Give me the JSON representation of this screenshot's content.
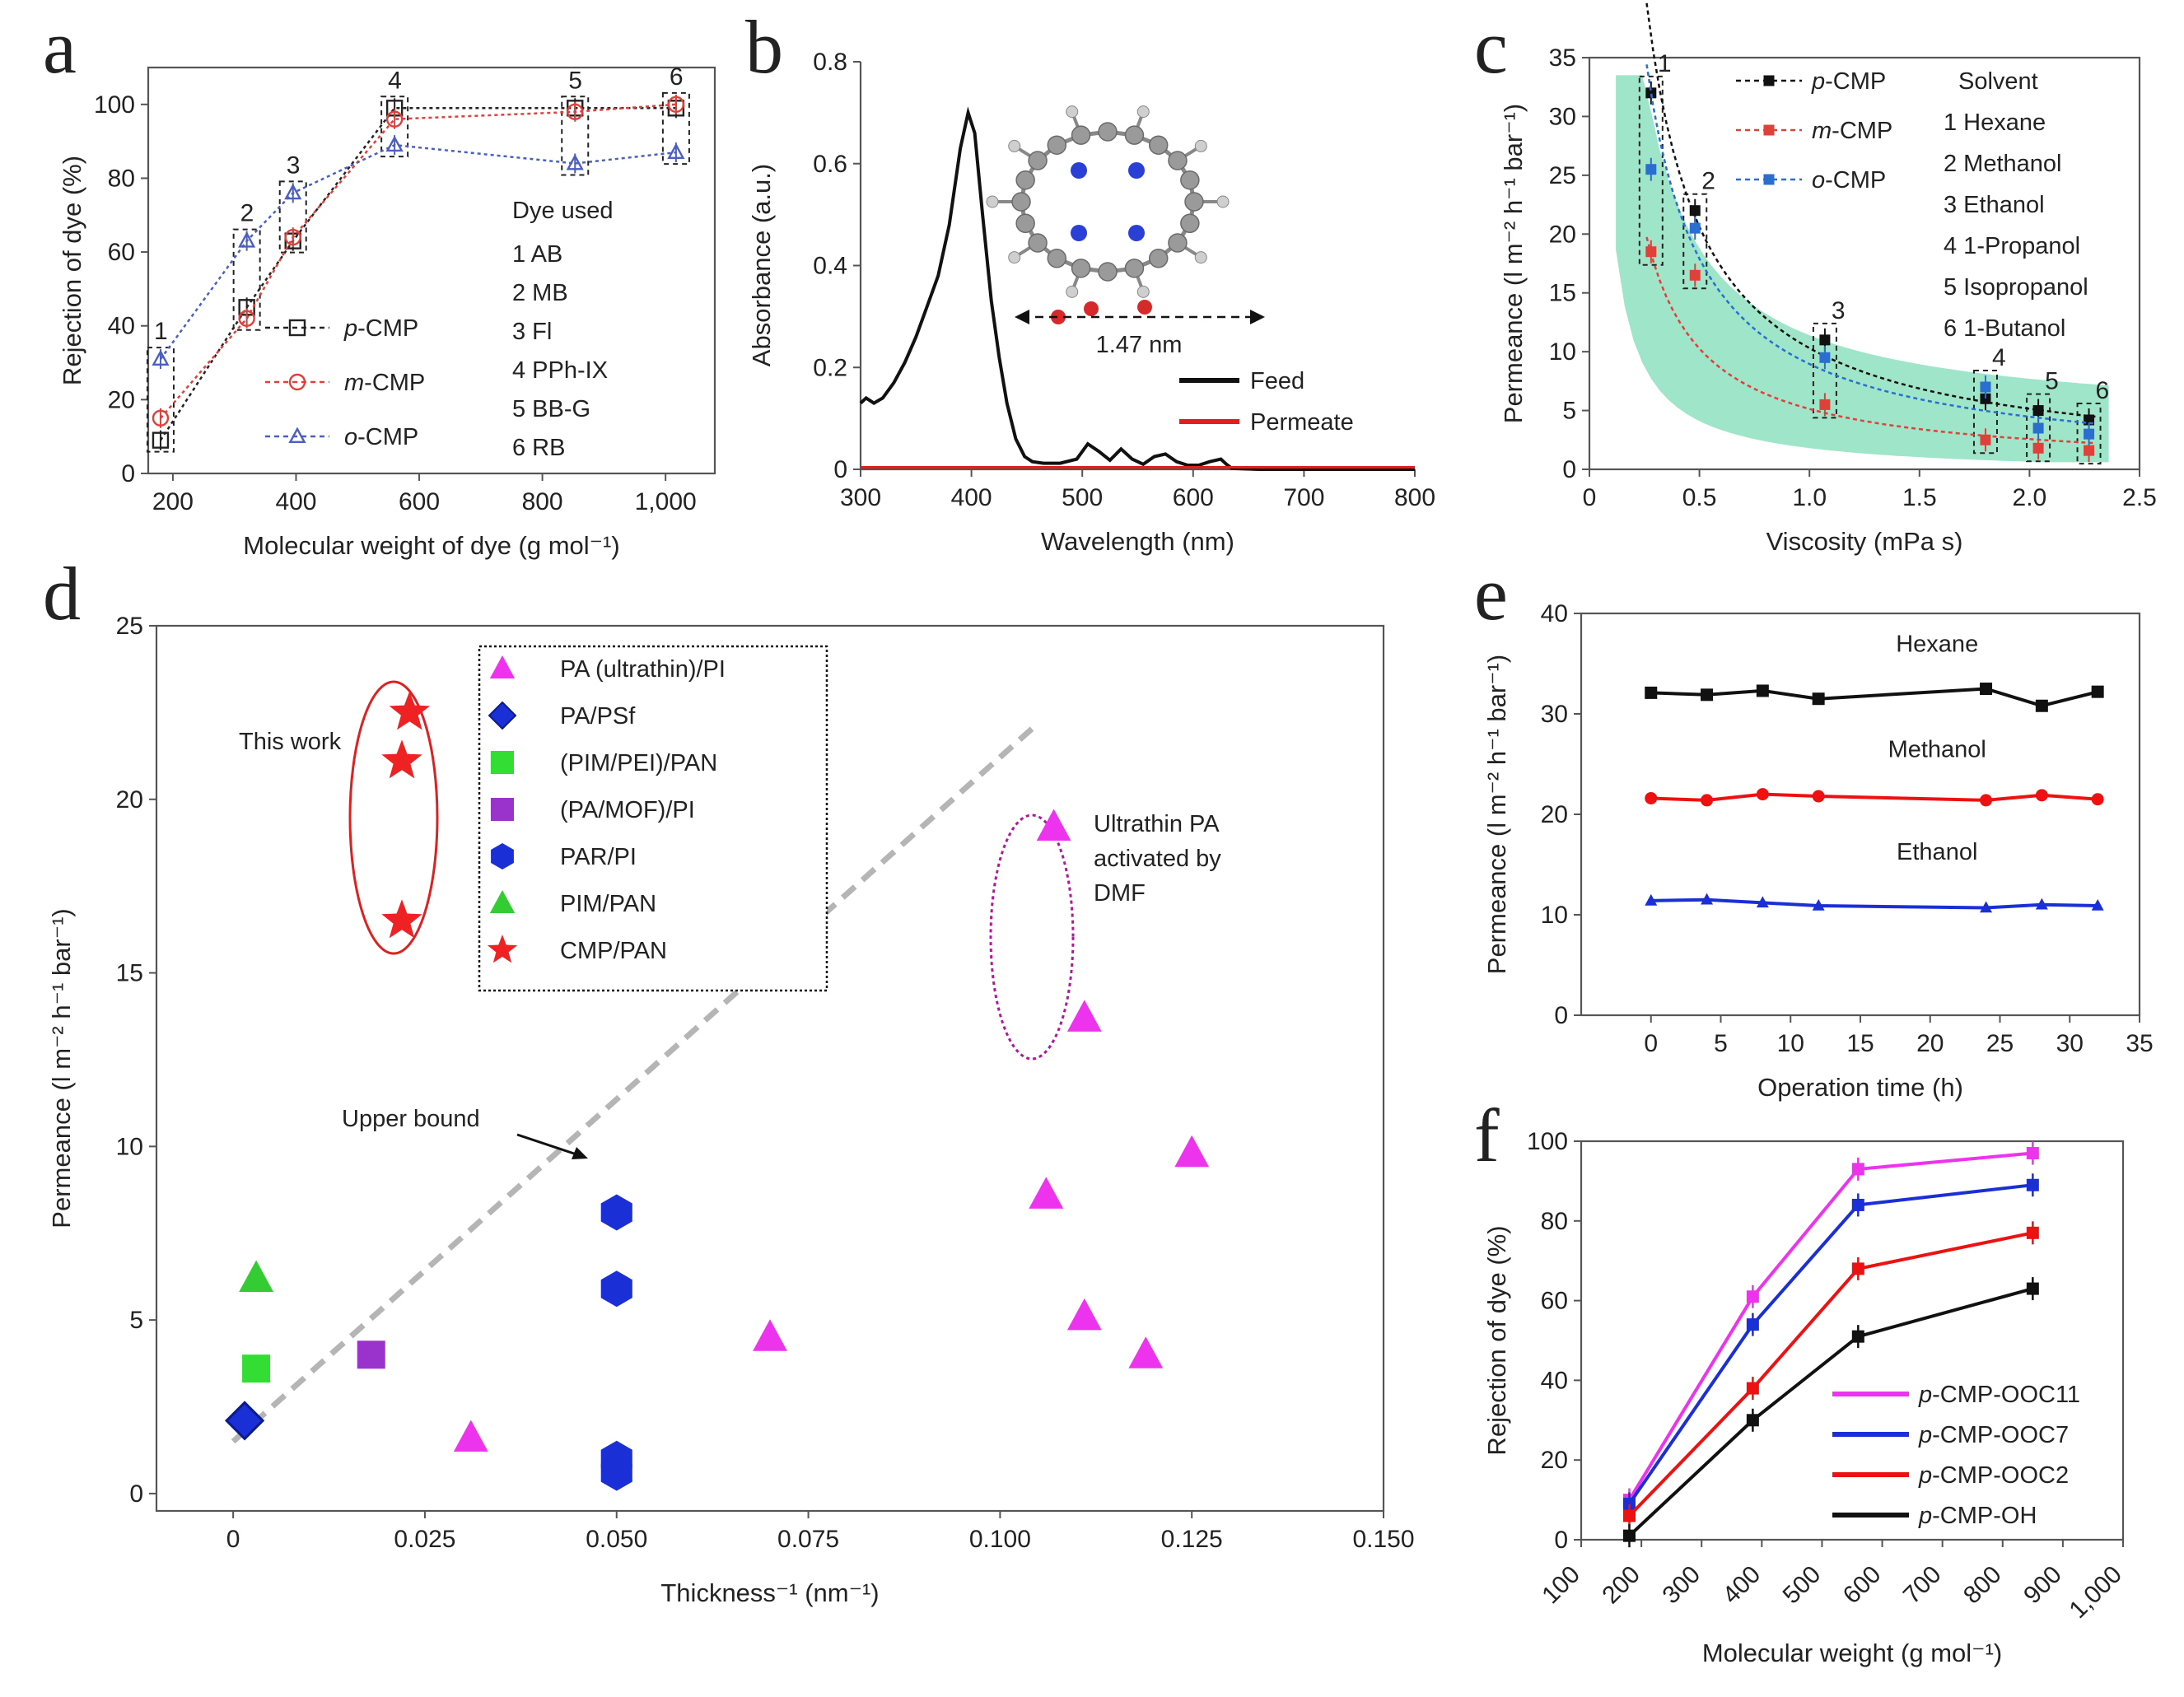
{
  "figure": {
    "panels": [
      "a",
      "b",
      "c",
      "d",
      "e",
      "f"
    ]
  },
  "chart_data": [
    {
      "panel": "a",
      "type": "line",
      "xlabel": "Molecular weight of dye (g mol⁻¹)",
      "ylabel": "Rejection of dye (%)",
      "xlim": [
        160,
        1080
      ],
      "ylim": [
        0,
        110
      ],
      "xticks": [
        200,
        400,
        600,
        800,
        1000
      ],
      "xtick_labels": [
        "200",
        "400",
        "600",
        "800",
        "1,000"
      ],
      "yticks": [
        0,
        20,
        40,
        60,
        80,
        100
      ],
      "ytick_labels": [
        "0",
        "20",
        "40",
        "60",
        "80",
        "100"
      ],
      "x": [
        180,
        320,
        395,
        560,
        853,
        1017
      ],
      "point_labels": [
        "1",
        "2",
        "3",
        "4",
        "5",
        "6"
      ],
      "series": [
        {
          "name": "p-CMP",
          "color": "#222222",
          "marker": "square",
          "values": [
            9,
            45,
            63,
            99,
            99,
            99
          ]
        },
        {
          "name": "m-CMP",
          "color": "#e0403a",
          "marker": "circle",
          "values": [
            15,
            42,
            64,
            96,
            98,
            100
          ]
        },
        {
          "name": "o-CMP",
          "color": "#4a5fc1",
          "marker": "triangle",
          "values": [
            31,
            63,
            76,
            89,
            84,
            87
          ]
        }
      ],
      "legend_title": "Dye used",
      "dyes": [
        "1 AB",
        "2 MB",
        "3 Fl",
        "4 PPh-IX",
        "5 BB-G",
        "6 RB"
      ]
    },
    {
      "panel": "b",
      "type": "line",
      "xlabel": "Wavelength (nm)",
      "ylabel": "Absorbance (a.u.)",
      "xlim": [
        300,
        800
      ],
      "ylim": [
        0,
        0.8
      ],
      "xticks": [
        300,
        400,
        500,
        600,
        700,
        800
      ],
      "yticks": [
        0,
        0.2,
        0.4,
        0.6,
        0.8
      ],
      "ytick_labels": [
        "0",
        "0.2",
        "0.4",
        "0.6",
        "0.8"
      ],
      "series": [
        {
          "name": "Feed",
          "color": "#111111",
          "x": [
            300,
            305,
            312,
            320,
            330,
            340,
            350,
            360,
            370,
            380,
            390,
            397,
            403,
            410,
            418,
            425,
            432,
            440,
            448,
            455,
            465,
            480,
            495,
            505,
            515,
            525,
            535,
            545,
            555,
            565,
            575,
            585,
            595,
            605,
            615,
            625,
            630,
            635,
            645,
            660,
            700,
            800
          ],
          "y": [
            0.13,
            0.14,
            0.13,
            0.14,
            0.17,
            0.21,
            0.26,
            0.32,
            0.38,
            0.48,
            0.63,
            0.7,
            0.66,
            0.5,
            0.33,
            0.22,
            0.13,
            0.06,
            0.025,
            0.015,
            0.012,
            0.012,
            0.02,
            0.05,
            0.035,
            0.018,
            0.04,
            0.02,
            0.01,
            0.025,
            0.03,
            0.015,
            0.008,
            0.008,
            0.015,
            0.02,
            0.01,
            0.002,
            0.001,
            0,
            0,
            0
          ]
        },
        {
          "name": "Permeate",
          "color": "#e02020",
          "x": [
            300,
            800
          ],
          "y": [
            0.004,
            0.004
          ]
        }
      ],
      "annotation": "1.47 nm"
    },
    {
      "panel": "c",
      "type": "scatter",
      "xlabel": "Viscosity (mPa s)",
      "ylabel": "Permeance (l m⁻² h⁻¹ bar⁻¹)",
      "xlim": [
        0,
        2.5
      ],
      "ylim": [
        0,
        35
      ],
      "xticks": [
        0,
        0.5,
        1.0,
        1.5,
        2.0,
        2.5
      ],
      "xtick_labels": [
        "0",
        "0.5",
        "1.0",
        "1.5",
        "2.0",
        "2.5"
      ],
      "yticks": [
        0,
        5,
        10,
        15,
        20,
        25,
        30,
        35
      ],
      "x": [
        0.28,
        0.48,
        1.07,
        1.8,
        2.04,
        2.27
      ],
      "point_labels": [
        "1",
        "2",
        "3",
        "4",
        "5",
        "6"
      ],
      "series": [
        {
          "name": "p-CMP",
          "color": "#111111",
          "values": [
            32,
            22,
            11,
            6,
            5,
            4.2
          ]
        },
        {
          "name": "m-CMP",
          "color": "#e0403a",
          "values": [
            18.5,
            16.5,
            5.5,
            2.5,
            1.8,
            1.6
          ]
        },
        {
          "name": "o-CMP",
          "color": "#2a6fd0",
          "values": [
            25.5,
            20.5,
            9.5,
            7,
            3.5,
            3
          ]
        }
      ],
      "legend_title": "Solvent",
      "solvents": [
        "1 Hexane",
        "2 Methanol",
        "3 Ethanol",
        "4 1-Propanol",
        "5 Isopropanol",
        "6 1-Butanol"
      ]
    },
    {
      "panel": "d",
      "type": "scatter",
      "xlabel": "Thickness⁻¹ (nm⁻¹)",
      "ylabel": "Permeance (l m⁻² h⁻¹ bar⁻¹)",
      "xlim": [
        -0.01,
        0.15
      ],
      "ylim": [
        -0.5,
        25
      ],
      "xticks": [
        0,
        0.025,
        0.05,
        0.075,
        0.1,
        0.125,
        0.15
      ],
      "xtick_labels": [
        "0",
        "0.025",
        "0.050",
        "0.075",
        "0.100",
        "0.125",
        "0.150"
      ],
      "yticks": [
        0,
        5,
        10,
        15,
        20,
        25
      ],
      "series": [
        {
          "name": "PA (ultrathin)/PI",
          "color": "#ee33ee",
          "marker": "triangle",
          "points": [
            [
              0.107,
              19.2
            ],
            [
              0.111,
              13.7
            ],
            [
              0.125,
              9.8
            ],
            [
              0.106,
              8.6
            ],
            [
              0.111,
              5.1
            ],
            [
              0.119,
              4
            ],
            [
              0.07,
              4.5
            ],
            [
              0.031,
              1.6
            ]
          ]
        },
        {
          "name": "PA/PSf",
          "color": "#1a2fd6",
          "marker": "diamond",
          "points": [
            [
              0.0015,
              2.1
            ]
          ]
        },
        {
          "name": "(PIM/PEI)/PAN",
          "color": "#33dd33",
          "marker": "square",
          "points": [
            [
              0.003,
              3.6
            ]
          ]
        },
        {
          "name": "(PA/MOF)/PI",
          "color": "#9933cc",
          "marker": "square",
          "points": [
            [
              0.018,
              4
            ]
          ]
        },
        {
          "name": "PAR/PI",
          "color": "#1a2fd6",
          "marker": "hexagon",
          "points": [
            [
              0.05,
              8.1
            ],
            [
              0.05,
              5.9
            ],
            [
              0.05,
              1
            ],
            [
              0.05,
              0.6
            ]
          ]
        },
        {
          "name": "PIM/PAN",
          "color": "#33cc33",
          "marker": "triangle",
          "points": [
            [
              0.003,
              6.2
            ]
          ]
        },
        {
          "name": "CMP/PAN",
          "color": "#ee2222",
          "marker": "star",
          "points": [
            [
              0.023,
              22.5
            ],
            [
              0.022,
              21.1
            ],
            [
              0.022,
              16.5
            ]
          ]
        }
      ],
      "upper_bound": {
        "label": "Upper bound",
        "x": [
          0,
          0.105
        ],
        "y": [
          1.5,
          22.2
        ]
      },
      "annotations": [
        "This work",
        "Ultrathin PA",
        "activated by",
        "DMF"
      ]
    },
    {
      "panel": "e",
      "type": "line",
      "xlabel": "Operation time (h)",
      "ylabel": "Permeance (l m⁻² h⁻¹ bar⁻¹)",
      "xlim": [
        -5,
        35
      ],
      "ylim": [
        0,
        40
      ],
      "xticks": [
        0,
        5,
        10,
        15,
        20,
        25,
        30,
        35
      ],
      "yticks": [
        0,
        10,
        20,
        30,
        40
      ],
      "x": [
        0,
        4,
        8,
        12,
        24,
        28,
        32
      ],
      "series": [
        {
          "name": "Hexane",
          "color": "#111111",
          "marker": "square",
          "values": [
            32.1,
            31.9,
            32.3,
            31.5,
            32.5,
            30.8,
            32.2
          ]
        },
        {
          "name": "Methanol",
          "color": "#ee1111",
          "marker": "circle",
          "values": [
            21.6,
            21.4,
            22,
            21.8,
            21.4,
            21.9,
            21.5
          ]
        },
        {
          "name": "Ethanol",
          "color": "#1a2fd6",
          "marker": "triangle",
          "values": [
            11.4,
            11.5,
            11.2,
            10.9,
            10.7,
            11,
            10.9
          ]
        }
      ]
    },
    {
      "panel": "f",
      "type": "line",
      "xlabel": "Molecular weight (g mol⁻¹)",
      "ylabel": "Rejection of dye (%)",
      "xlim": [
        100,
        1000
      ],
      "ylim": [
        0,
        100
      ],
      "xticks": [
        100,
        200,
        300,
        400,
        500,
        600,
        700,
        800,
        900,
        1000
      ],
      "xtick_labels": [
        "100",
        "200",
        "300",
        "400",
        "500",
        "600",
        "700",
        "800",
        "900",
        "1,000"
      ],
      "yticks": [
        0,
        20,
        40,
        60,
        80,
        100
      ],
      "x": [
        180,
        385,
        560,
        850
      ],
      "series": [
        {
          "name": "p-CMP-OOC11",
          "color": "#ee33ee",
          "values": [
            10,
            61,
            93,
            97
          ]
        },
        {
          "name": "p-CMP-OOC7",
          "color": "#1a2fd6",
          "values": [
            9,
            54,
            84,
            89
          ]
        },
        {
          "name": "p-CMP-OOC2",
          "color": "#ee1111",
          "values": [
            6,
            38,
            68,
            77
          ]
        },
        {
          "name": "p-CMP-OH",
          "color": "#111111",
          "values": [
            1,
            30,
            51,
            63
          ]
        }
      ]
    }
  ]
}
